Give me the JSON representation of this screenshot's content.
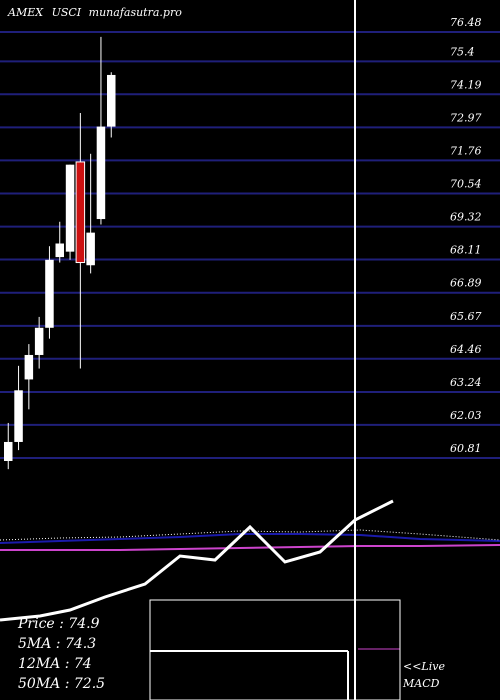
{
  "header": {
    "exchange": "AMEX",
    "symbol": "USCI",
    "site": "munafasutra.pro"
  },
  "colors": {
    "background": "#000000",
    "gridline": "#1f1f7a",
    "text": "#ffffff",
    "up_candle": "#ffffff",
    "down_candle": "#cc1111",
    "wick": "#ffffff",
    "price_line": "#ffffff",
    "ma_blue": "#1a1aaa",
    "ma_magenta": "#cc44cc",
    "ma_dotted": "#ffffff",
    "marker_line": "#ffffff"
  },
  "chart_data": {
    "type": "candlestick",
    "title": "AMEX  USCI munafasutra.pro",
    "yticks": [
      "76.48",
      "75.4",
      "74.19",
      "72.97",
      "71.76",
      "70.54",
      "69.32",
      "68.11",
      "66.89",
      "65.67",
      "64.46",
      "63.24",
      "62.03",
      "60.81"
    ],
    "ylim": [
      60.1,
      76.8
    ],
    "candles": [
      {
        "open": 60.7,
        "close": 61.4,
        "high": 62.1,
        "low": 60.4,
        "dir": "up"
      },
      {
        "open": 61.4,
        "close": 63.3,
        "high": 64.2,
        "low": 61.1,
        "dir": "up"
      },
      {
        "open": 63.7,
        "close": 64.6,
        "high": 65.0,
        "low": 62.6,
        "dir": "up"
      },
      {
        "open": 64.6,
        "close": 65.6,
        "high": 66.0,
        "low": 64.1,
        "dir": "up"
      },
      {
        "open": 65.6,
        "close": 68.1,
        "high": 68.6,
        "low": 65.2,
        "dir": "up"
      },
      {
        "open": 68.2,
        "close": 68.7,
        "high": 69.5,
        "low": 68.0,
        "dir": "up"
      },
      {
        "open": 68.4,
        "close": 71.6,
        "high": 71.6,
        "low": 68.1,
        "dir": "up"
      },
      {
        "open": 71.7,
        "close": 68.0,
        "high": 73.5,
        "low": 64.1,
        "dir": "down"
      },
      {
        "open": 67.9,
        "close": 69.1,
        "high": 72.0,
        "low": 67.6,
        "dir": "up"
      },
      {
        "open": 69.6,
        "close": 73.0,
        "high": 76.3,
        "low": 69.4,
        "dir": "up"
      },
      {
        "open": 73.0,
        "close": 74.9,
        "high": 75.0,
        "low": 72.6,
        "dir": "up"
      }
    ],
    "price_line": [
      5,
      5,
      5,
      7,
      8,
      8.5,
      9,
      9.5,
      10,
      10,
      10.5,
      10.5,
      10.5,
      11,
      11.5
    ],
    "macd_line_note": "unlabelled indicator curves below price area",
    "legend": {
      "price": "Price   : 74.9",
      "ma5": "5MA : 74.3",
      "ma12": "12MA : 74",
      "ma50": "50MA : 72.5"
    },
    "macd_label_1": "<<Live",
    "macd_label_2": "MACD",
    "grid": true
  }
}
